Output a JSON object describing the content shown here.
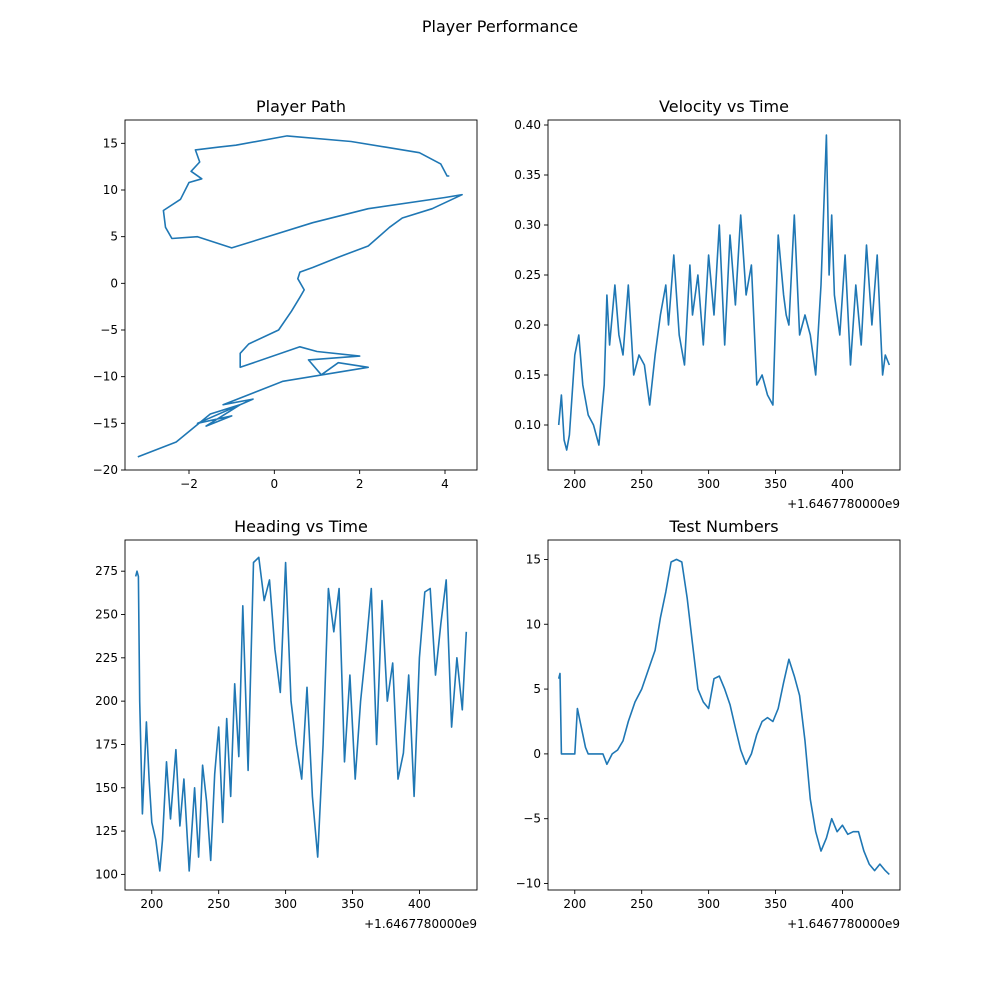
{
  "figure": {
    "suptitle": "Player Performance",
    "line_color": "#1f77b4"
  },
  "chart_data": [
    {
      "type": "line",
      "title": "Player Path",
      "xlabel": "",
      "ylabel": "",
      "xlim": [
        -3.5,
        4.75
      ],
      "ylim": [
        -20,
        17.5
      ],
      "xticks": [
        -2,
        0,
        2,
        4
      ],
      "xtick_labels": [
        "−2",
        "0",
        "2",
        "4"
      ],
      "yticks": [
        -20,
        -15,
        -10,
        -5,
        0,
        5,
        10,
        15
      ],
      "ytick_labels": [
        "−20",
        "−15",
        "−10",
        "−5",
        "0",
        "5",
        "10",
        "15"
      ],
      "offset_label": "",
      "grid": false,
      "series": [
        {
          "x": [
            -3.2,
            -2.3,
            -1.5,
            -0.8,
            -1.6,
            -1.0,
            -1.8,
            -0.5,
            -1.2,
            0.2,
            2.2,
            1.5,
            1.1,
            0.8,
            2.0,
            1.0,
            0.6,
            -0.8,
            -0.8,
            -0.6,
            0.1,
            0.4,
            0.6,
            0.7,
            0.55,
            0.6,
            0.9,
            1.5,
            2.2,
            2.7,
            3.0,
            3.7,
            4.4,
            4.0,
            2.2,
            0.9,
            -1.0,
            -1.8,
            -2.4,
            -2.55,
            -2.6,
            -2.2,
            -2.0,
            -1.7,
            -1.95,
            -1.75,
            -1.85,
            -1.3,
            -0.9,
            0.3,
            1.8,
            2.6,
            3.4,
            3.9,
            4.05,
            4.1
          ],
          "y": [
            -18.6,
            -17.0,
            -14.0,
            -13.0,
            -15.3,
            -14.2,
            -15.0,
            -12.4,
            -13.0,
            -10.5,
            -9.0,
            -8.5,
            -9.8,
            -8.2,
            -7.8,
            -7.3,
            -6.8,
            -9.0,
            -7.5,
            -6.5,
            -5.0,
            -3.0,
            -1.5,
            -0.7,
            0.5,
            1.2,
            1.7,
            2.8,
            4.0,
            6.0,
            7.0,
            8.0,
            9.5,
            9.2,
            8.0,
            6.5,
            3.8,
            5.0,
            4.8,
            6.0,
            7.8,
            9.0,
            10.8,
            11.2,
            12.0,
            13.0,
            14.3,
            14.6,
            14.8,
            15.8,
            15.2,
            14.6,
            14.0,
            12.8,
            11.5,
            11.5
          ]
        }
      ]
    },
    {
      "type": "line",
      "title": "Velocity vs Time",
      "xlabel": "",
      "ylabel": "",
      "xlim": [
        180,
        443
      ],
      "ylim": [
        0.055,
        0.405
      ],
      "xticks": [
        200,
        250,
        300,
        350,
        400
      ],
      "xtick_labels": [
        "200",
        "250",
        "300",
        "350",
        "400"
      ],
      "yticks": [
        0.1,
        0.15,
        0.2,
        0.25,
        0.3,
        0.35,
        0.4
      ],
      "ytick_labels": [
        "0.10",
        "0.15",
        "0.20",
        "0.25",
        "0.30",
        "0.35",
        "0.40"
      ],
      "offset_label": "+1.6467780000e9",
      "grid": false,
      "series": [
        {
          "x": [
            188,
            190,
            192,
            194,
            196,
            200,
            203,
            206,
            210,
            214,
            218,
            222,
            224,
            226,
            230,
            233,
            236,
            240,
            244,
            248,
            252,
            256,
            260,
            264,
            268,
            270,
            274,
            278,
            282,
            286,
            288,
            292,
            296,
            300,
            304,
            308,
            312,
            316,
            320,
            324,
            328,
            332,
            336,
            340,
            344,
            348,
            352,
            356,
            358,
            360,
            364,
            368,
            372,
            376,
            380,
            384,
            388,
            390,
            392,
            394,
            398,
            402,
            406,
            410,
            414,
            418,
            422,
            426,
            430,
            432,
            435
          ],
          "y": [
            0.1,
            0.13,
            0.085,
            0.075,
            0.09,
            0.17,
            0.19,
            0.14,
            0.11,
            0.1,
            0.08,
            0.14,
            0.23,
            0.18,
            0.24,
            0.19,
            0.17,
            0.24,
            0.15,
            0.17,
            0.16,
            0.12,
            0.17,
            0.21,
            0.24,
            0.2,
            0.27,
            0.19,
            0.16,
            0.26,
            0.21,
            0.25,
            0.18,
            0.27,
            0.21,
            0.3,
            0.18,
            0.29,
            0.22,
            0.31,
            0.23,
            0.26,
            0.14,
            0.15,
            0.13,
            0.12,
            0.29,
            0.23,
            0.21,
            0.2,
            0.31,
            0.19,
            0.21,
            0.19,
            0.15,
            0.24,
            0.39,
            0.25,
            0.31,
            0.23,
            0.19,
            0.27,
            0.16,
            0.24,
            0.18,
            0.28,
            0.2,
            0.27,
            0.15,
            0.17,
            0.16
          ]
        }
      ]
    },
    {
      "type": "line",
      "title": "Heading vs Time",
      "xlabel": "",
      "ylabel": "",
      "xlim": [
        180,
        443
      ],
      "ylim": [
        91,
        293
      ],
      "xticks": [
        200,
        250,
        300,
        350,
        400
      ],
      "xtick_labels": [
        "200",
        "250",
        "300",
        "350",
        "400"
      ],
      "yticks": [
        100,
        125,
        150,
        175,
        200,
        225,
        250,
        275
      ],
      "ytick_labels": [
        "100",
        "125",
        "150",
        "175",
        "200",
        "225",
        "250",
        "275"
      ],
      "offset_label": "+1.6467780000e9",
      "grid": false,
      "series": [
        {
          "x": [
            188,
            189,
            190,
            191,
            193,
            196,
            198,
            200,
            203,
            206,
            208,
            211,
            214,
            218,
            221,
            224,
            228,
            232,
            235,
            238,
            241,
            244,
            247,
            250,
            253,
            256,
            259,
            262,
            265,
            268,
            272,
            276,
            280,
            284,
            288,
            292,
            296,
            300,
            304,
            308,
            312,
            316,
            320,
            324,
            328,
            332,
            336,
            340,
            344,
            348,
            352,
            356,
            360,
            364,
            368,
            372,
            376,
            380,
            384,
            388,
            392,
            396,
            400,
            404,
            408,
            412,
            416,
            420,
            424,
            428,
            432,
            435
          ],
          "y": [
            272,
            275,
            272,
            200,
            135,
            188,
            155,
            130,
            120,
            102,
            120,
            165,
            132,
            172,
            128,
            155,
            102,
            150,
            110,
            163,
            142,
            108,
            158,
            185,
            130,
            190,
            145,
            210,
            168,
            255,
            160,
            280,
            283,
            258,
            270,
            230,
            205,
            280,
            200,
            175,
            155,
            208,
            145,
            110,
            175,
            265,
            240,
            265,
            165,
            215,
            155,
            200,
            230,
            265,
            175,
            258,
            200,
            222,
            155,
            170,
            215,
            145,
            225,
            263,
            265,
            215,
            245,
            270,
            185,
            225,
            195,
            240
          ]
        }
      ]
    },
    {
      "type": "line",
      "title": "Test Numbers",
      "xlabel": "",
      "ylabel": "",
      "xlim": [
        180,
        443
      ],
      "ylim": [
        -10.5,
        16.5
      ],
      "xticks": [
        200,
        250,
        300,
        350,
        400
      ],
      "xtick_labels": [
        "200",
        "250",
        "300",
        "350",
        "400"
      ],
      "yticks": [
        -10,
        -5,
        0,
        5,
        10,
        15
      ],
      "ytick_labels": [
        "−10",
        "−5",
        "0",
        "5",
        "10",
        "15"
      ],
      "offset_label": "+1.6467780000e9",
      "grid": false,
      "series": [
        {
          "x": [
            188,
            189,
            190,
            200,
            202,
            204,
            206,
            208,
            210,
            215,
            221,
            224,
            228,
            232,
            236,
            240,
            245,
            250,
            255,
            260,
            264,
            268,
            272,
            276,
            280,
            284,
            288,
            292,
            296,
            300,
            304,
            308,
            312,
            316,
            320,
            324,
            328,
            332,
            336,
            340,
            344,
            348,
            352,
            356,
            360,
            364,
            368,
            372,
            376,
            380,
            384,
            388,
            392,
            396,
            400,
            404,
            408,
            412,
            416,
            420,
            424,
            428,
            432,
            435
          ],
          "y": [
            5.8,
            6.2,
            0,
            0,
            3.5,
            2.5,
            1.5,
            0.5,
            0,
            0,
            0,
            -0.8,
            0,
            0.3,
            1.0,
            2.5,
            4.0,
            5.0,
            6.5,
            8.0,
            10.5,
            12.5,
            14.8,
            15.0,
            14.8,
            12.0,
            8.5,
            5.0,
            4.0,
            3.5,
            5.8,
            6.0,
            5.0,
            3.8,
            2.0,
            0.3,
            -0.8,
            0,
            1.5,
            2.5,
            2.8,
            2.5,
            3.5,
            5.5,
            7.3,
            6.0,
            4.5,
            1.0,
            -3.5,
            -6.0,
            -7.5,
            -6.5,
            -5.0,
            -6.0,
            -5.5,
            -6.2,
            -6.0,
            -6.0,
            -7.5,
            -8.5,
            -9.0,
            -8.5,
            -9.0,
            -9.3
          ]
        }
      ]
    }
  ]
}
